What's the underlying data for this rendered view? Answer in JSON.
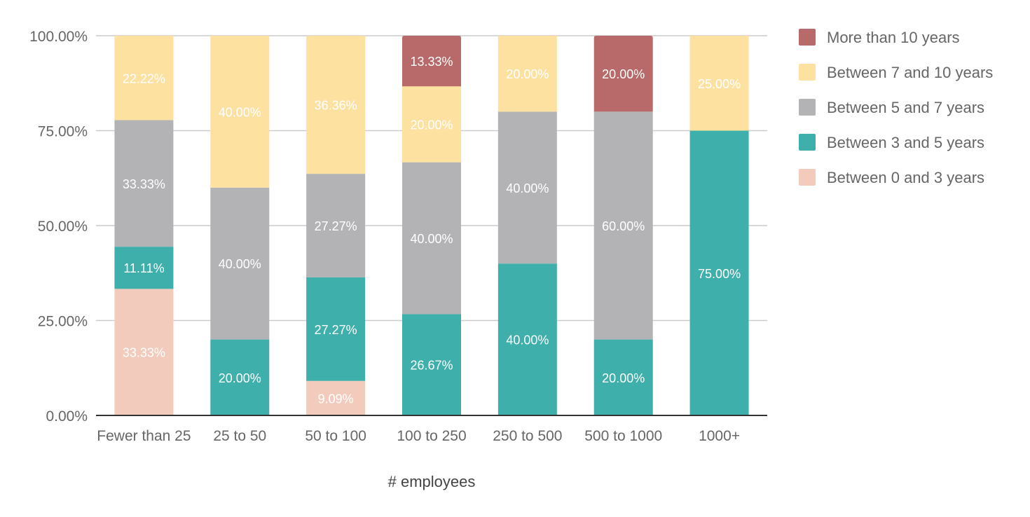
{
  "chart_data": {
    "type": "bar",
    "stacked": true,
    "title": "",
    "xlabel": "# employees",
    "ylabel": "",
    "ylim": [
      0,
      100
    ],
    "yticks": [
      "0.00%",
      "25.00%",
      "50.00%",
      "75.00%",
      "100.00%"
    ],
    "grid": true,
    "legend_position": "right",
    "categories": [
      "Fewer than 25",
      "25 to 50",
      "50 to 100",
      "100 to 250",
      "250 to 500",
      "500 to 1000",
      "1000+"
    ],
    "series": [
      {
        "name": "Between 0 and 3 years",
        "color": "#f2cbbd",
        "label_color": "#ffffff",
        "values": [
          33.33,
          0,
          9.09,
          0,
          0,
          0,
          0
        ],
        "labels": [
          "33.33%",
          "",
          "9.09%",
          "",
          "",
          "",
          ""
        ]
      },
      {
        "name": "Between 3 and 5 years",
        "color": "#3eafaa",
        "label_color": "#ffffff",
        "values": [
          11.11,
          20.0,
          27.27,
          26.67,
          40.0,
          20.0,
          75.0
        ],
        "labels": [
          "11.11%",
          "20.00%",
          "27.27%",
          "26.67%",
          "40.00%",
          "20.00%",
          "75.00%"
        ]
      },
      {
        "name": "Between 5 and 7 years",
        "color": "#b3b3b5",
        "label_color": "#ffffff",
        "values": [
          33.33,
          40.0,
          27.27,
          40.0,
          40.0,
          60.0,
          0
        ],
        "labels": [
          "33.33%",
          "40.00%",
          "27.27%",
          "40.00%",
          "40.00%",
          "60.00%",
          ""
        ]
      },
      {
        "name": "Between 7 and 10 years",
        "color": "#fde1a1",
        "label_color": "#ffffff",
        "values": [
          22.22,
          40.0,
          36.36,
          20.0,
          20.0,
          0,
          25.0
        ],
        "labels": [
          "22.22%",
          "40.00%",
          "36.36%",
          "20.00%",
          "20.00%",
          "",
          "25.00%"
        ]
      },
      {
        "name": "More than 10 years",
        "color": "#b76a69",
        "label_color": "#ffffff",
        "values": [
          0,
          0,
          0,
          13.33,
          0,
          20.0,
          0
        ],
        "labels": [
          "",
          "",
          "",
          "13.33%",
          "",
          "20.00%",
          ""
        ]
      }
    ],
    "legend_order": [
      "More than 10 years",
      "Between 7 and 10 years",
      "Between 5 and 7 years",
      "Between 3 and 5 years",
      "Between 0 and 3 years"
    ],
    "colors": {
      "grid": "#cccccc",
      "axis": "#333333",
      "text": "#666666"
    }
  }
}
